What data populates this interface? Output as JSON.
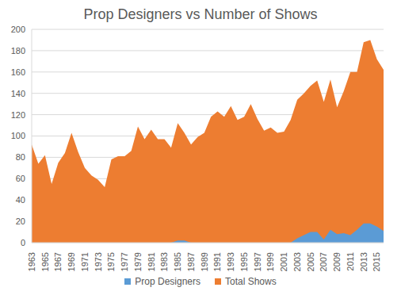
{
  "chart_data": {
    "type": "area",
    "title": "Prop Designers vs Number of Shows",
    "categories": [
      "1963",
      null,
      "1965",
      null,
      "1967",
      null,
      "1969",
      null,
      "1971",
      null,
      "1973",
      null,
      "1975",
      null,
      "1977",
      null,
      "1979",
      null,
      "1981",
      null,
      "1983",
      null,
      "1985",
      null,
      "1987",
      null,
      "1989",
      null,
      "1991",
      null,
      "1993",
      null,
      "1995",
      null,
      "1997",
      null,
      "1999",
      null,
      "2001",
      null,
      "2003",
      null,
      "2005",
      null,
      "2007",
      null,
      "2009",
      null,
      "2011",
      null,
      "2013",
      null,
      "2015",
      null
    ],
    "series": [
      {
        "name": "Prop Designers",
        "color": "#5b9bd5",
        "values": [
          0,
          0,
          0,
          0,
          0,
          0,
          0,
          0,
          0,
          0,
          0,
          0,
          0,
          0,
          0,
          0,
          0,
          0,
          0,
          0,
          0,
          0,
          2,
          2,
          0,
          0,
          0,
          0,
          0,
          0,
          0,
          0,
          0,
          0,
          0,
          0,
          0,
          0,
          0,
          0,
          4,
          7,
          10,
          10,
          3,
          12,
          8,
          9,
          7,
          12,
          18,
          18,
          15,
          11
        ]
      },
      {
        "name": "Total Shows",
        "color": "#ed7d31",
        "values": [
          92,
          74,
          82,
          55,
          75,
          84,
          103,
          85,
          70,
          63,
          59,
          52,
          78,
          81,
          81,
          86,
          109,
          97,
          106,
          97,
          97,
          89,
          112,
          103,
          92,
          99,
          103,
          118,
          123,
          118,
          128,
          115,
          118,
          130,
          116,
          105,
          108,
          103,
          104,
          115,
          134,
          140,
          147,
          152,
          132,
          153,
          127,
          142,
          160,
          160,
          188,
          190,
          172,
          162
        ]
      }
    ],
    "ylim": [
      0,
      200
    ],
    "yticks": [
      0,
      20,
      40,
      60,
      80,
      100,
      120,
      140,
      160,
      180,
      200
    ],
    "grid": true,
    "legend": "bottom"
  }
}
